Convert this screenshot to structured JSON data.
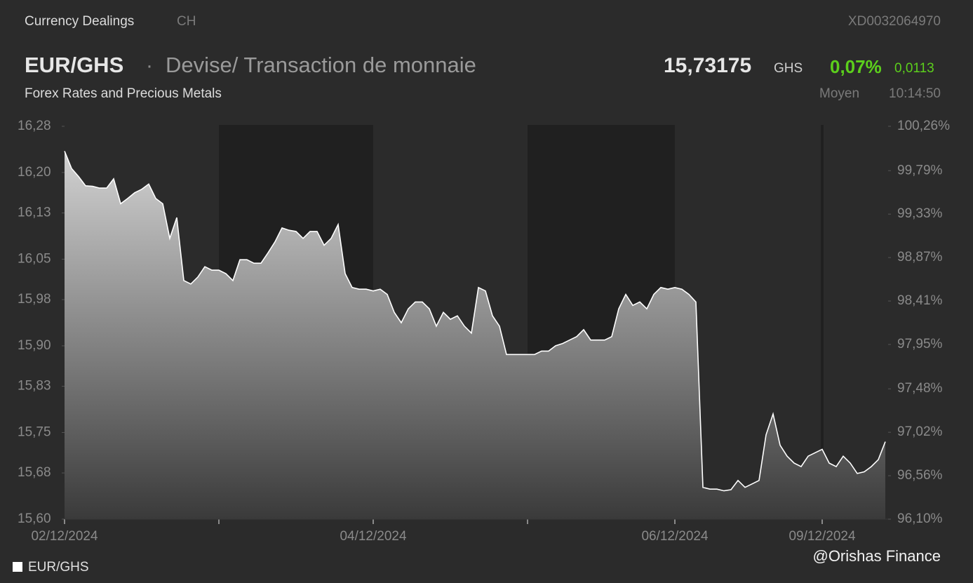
{
  "header": {
    "section": "Currency Dealings",
    "country": "CH",
    "isin": "XD0032064970",
    "symbol": "EUR/GHS",
    "description": "Devise/ Transaction de monnaie",
    "subtitle": "Forex Rates and Precious Metals",
    "price": "15,73175",
    "currency": "GHS",
    "change_pct": "0,07%",
    "change_abs": "0,0113",
    "quote_type": "Moyen",
    "time": "10:14:50"
  },
  "chart_data": {
    "type": "area",
    "series": [
      {
        "name": "EUR/GHS",
        "color": "#ffffff",
        "values": [
          16.237,
          16.207,
          16.193,
          16.177,
          16.176,
          16.173,
          16.173,
          16.189,
          16.146,
          16.155,
          16.165,
          16.171,
          16.18,
          16.155,
          16.146,
          16.086,
          16.122,
          16.013,
          16.007,
          16.019,
          16.037,
          16.031,
          16.031,
          16.025,
          16.013,
          16.049,
          16.049,
          16.043,
          16.043,
          16.061,
          16.08,
          16.104,
          16.1,
          16.098,
          16.086,
          16.098,
          16.098,
          16.074,
          16.086,
          16.11,
          16.025,
          16.001,
          15.998,
          15.998,
          15.995,
          15.998,
          15.989,
          15.958,
          15.94,
          15.964,
          15.976,
          15.976,
          15.964,
          15.934,
          15.958,
          15.946,
          15.952,
          15.934,
          15.922,
          16.001,
          15.995,
          15.952,
          15.934,
          15.885,
          15.885,
          15.885,
          15.885,
          15.885,
          15.891,
          15.891,
          15.9,
          15.904,
          15.91,
          15.916,
          15.928,
          15.91,
          15.91,
          15.91,
          15.916,
          15.964,
          15.989,
          15.97,
          15.976,
          15.964,
          15.989,
          16.001,
          15.998,
          16.001,
          15.998,
          15.989,
          15.976,
          15.655,
          15.652,
          15.652,
          15.649,
          15.651,
          15.667,
          15.655,
          15.661,
          15.667,
          15.746,
          15.782,
          15.728,
          15.709,
          15.697,
          15.691,
          15.709,
          15.715,
          15.721,
          15.697,
          15.691,
          15.709,
          15.697,
          15.679,
          15.682,
          15.691,
          15.703,
          15.734
        ]
      }
    ],
    "xlim": [
      0,
      117
    ],
    "xticks": [
      {
        "value": 0,
        "label": "02/12/2024"
      },
      {
        "value": 22,
        "label": null
      },
      {
        "value": 44,
        "label": "04/12/2024"
      },
      {
        "value": 66,
        "label": null
      },
      {
        "value": 87,
        "label": "06/12/2024"
      },
      {
        "value": 108,
        "label": "09/12/2024"
      }
    ],
    "ylim": [
      15.6,
      16.28
    ],
    "yticks": [
      {
        "value": 16.28,
        "label": "16,28"
      },
      {
        "value": 16.2,
        "label": "16,20"
      },
      {
        "value": 16.13,
        "label": "16,13"
      },
      {
        "value": 16.05,
        "label": "16,05"
      },
      {
        "value": 15.98,
        "label": "15,98"
      },
      {
        "value": 15.9,
        "label": "15,90"
      },
      {
        "value": 15.83,
        "label": "15,83"
      },
      {
        "value": 15.75,
        "label": "15,75"
      },
      {
        "value": 15.68,
        "label": "15,68"
      },
      {
        "value": 15.6,
        "label": "15,60"
      }
    ],
    "y2lim": [
      96.1,
      100.26
    ],
    "y2ticks": [
      {
        "value": 100.26,
        "label": "100,26%"
      },
      {
        "value": 99.79,
        "label": "99,79%"
      },
      {
        "value": 99.33,
        "label": "99,33%"
      },
      {
        "value": 98.87,
        "label": "98,87%"
      },
      {
        "value": 98.41,
        "label": "98,41%"
      },
      {
        "value": 97.95,
        "label": "97,95%"
      },
      {
        "value": 97.48,
        "label": "97,48%"
      },
      {
        "value": 97.02,
        "label": "97,02%"
      },
      {
        "value": 96.56,
        "label": "96,56%"
      },
      {
        "value": 96.1,
        "label": "96,10%"
      }
    ]
  },
  "footer": {
    "credit": "@Orishas Finance"
  }
}
